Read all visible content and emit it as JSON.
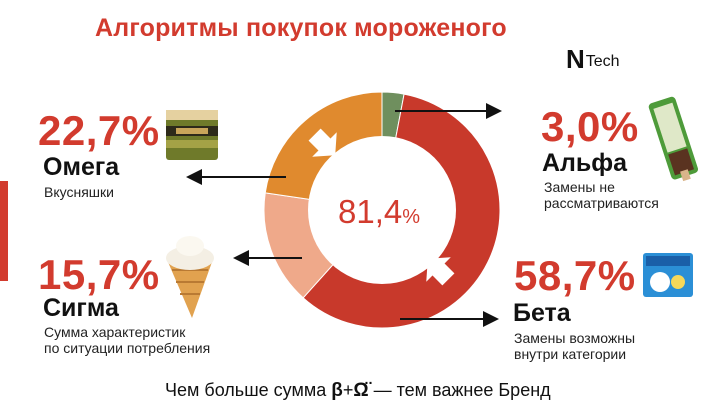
{
  "title": "Алгоритмы покупок мороженого",
  "logo": {
    "mark": "N",
    "word": "Tech"
  },
  "center_label": {
    "value": "81,4",
    "unit": "%"
  },
  "segments": {
    "omega": {
      "pct": "22,7%",
      "name": "Омега",
      "desc": "Вкусняшки"
    },
    "alpha": {
      "pct": "3,0%",
      "name": "Альфа",
      "desc": "Замены не\nрассматриваются"
    },
    "sigma": {
      "pct": "15,7%",
      "name": "Сигма",
      "desc": "Сумма характеристик\nпо ситуации потребления"
    },
    "beta": {
      "pct": "58,7%",
      "name": "Бета",
      "desc": "Замены возможны\nвнутри категории"
    }
  },
  "footer": {
    "prefix": "Чем больше сумма ",
    "sym1": "β",
    "plus": "+",
    "sym2": "Ω̈",
    "suffix": " — тем важнее Бренд"
  },
  "colors": {
    "accent": "#d23b2e",
    "alpha": "#6f8f5e",
    "beta": "#c8392b",
    "sigma": "#efa98a",
    "omega": "#e08a2e"
  },
  "chart_data": {
    "type": "pie",
    "style": "donut",
    "title": "Алгоритмы покупок мороженого",
    "center_text": "81,4%",
    "series": [
      {
        "name": "Альфа",
        "value": 3.0,
        "color": "#6f8f5e"
      },
      {
        "name": "Бета",
        "value": 58.7,
        "color": "#c8392b"
      },
      {
        "name": "Сигма",
        "value": 15.7,
        "color": "#efa98a"
      },
      {
        "name": "Омега",
        "value": 22.7,
        "color": "#e08a2e"
      }
    ]
  }
}
